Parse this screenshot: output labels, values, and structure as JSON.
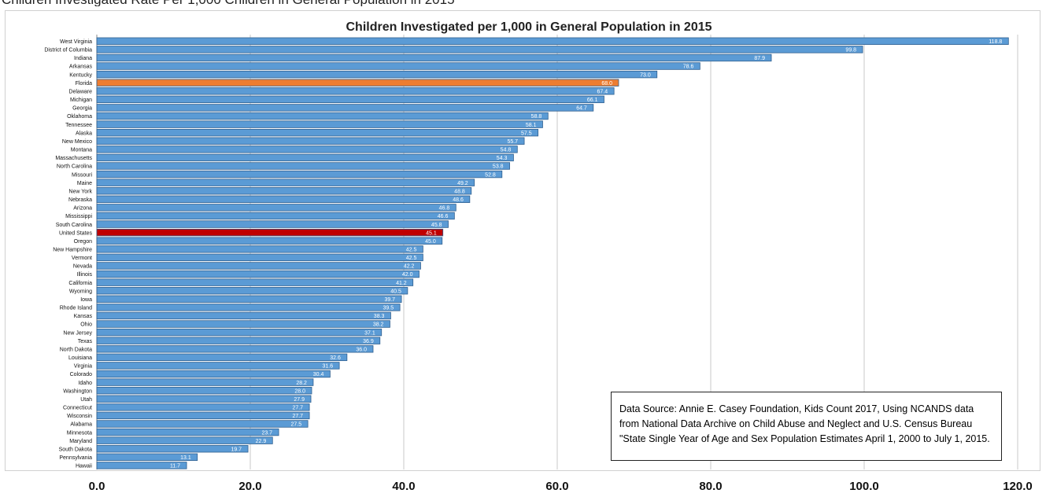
{
  "page_title": "Children Investigated Rate Per 1,000 Children in General Population in 2015",
  "colors": {
    "bar": "#5b9bd5",
    "bar_border": "#2f5f8f",
    "florida": "#ed7d31",
    "united_states": "#c00000",
    "gridline": "#c8c8c8",
    "label_text": "#ffffff"
  },
  "source_note": "Data Source: Annie E. Casey Foundation, Kids Count 2017, Using NCANDS data from National Data Archive on Child Abuse and Neglect and U.S. Census Bureau \"State Single Year of Age and Sex Population Estimates April 1, 2000 to July 1, 2015.",
  "chart_data": {
    "type": "bar",
    "orientation": "horizontal",
    "title": "Children Investigated per 1,000 in General Population in 2015",
    "xlabel": "",
    "ylabel": "",
    "xlim": [
      0,
      120
    ],
    "x_ticks": [
      "0.0",
      "20.0",
      "40.0",
      "60.0",
      "80.0",
      "100.0",
      "120.0"
    ],
    "grid": true,
    "highlights": {
      "Florida": "florida",
      "United States": "united_states"
    },
    "categories": [
      "West Virginia",
      "District of Columbia",
      "Indiana",
      "Arkansas",
      "Kentucky",
      "Florida",
      "Delaware",
      "Michigan",
      "Georgia",
      "Oklahoma",
      "Tennessee",
      "Alaska",
      "New Mexico",
      "Montana",
      "Massachusetts",
      "North Carolina",
      "Missouri",
      "Maine",
      "New York",
      "Nebraska",
      "Arizona",
      "Mississippi",
      "South Carolina",
      "United States",
      "Oregon",
      "New Hampshire",
      "Vermont",
      "Nevada",
      "Illinois",
      "California",
      "Wyoming",
      "Iowa",
      "Rhode Island",
      "Kansas",
      "Ohio",
      "New Jersey",
      "Texas",
      "North Dakota",
      "Louisiana",
      "Virginia",
      "Colorado",
      "Idaho",
      "Washington",
      "Utah",
      "Connecticut",
      "Wisconsin",
      "Alabama",
      "Minnesota",
      "Maryland",
      "South Dakota",
      "Pennsylvania",
      "Hawaii"
    ],
    "values": [
      118.8,
      99.8,
      87.9,
      78.6,
      73.0,
      68.0,
      67.4,
      66.1,
      64.7,
      58.8,
      58.1,
      57.5,
      55.7,
      54.8,
      54.3,
      53.8,
      52.8,
      49.2,
      48.8,
      48.6,
      46.8,
      46.6,
      45.8,
      45.1,
      45.0,
      42.5,
      42.5,
      42.2,
      42.0,
      41.2,
      40.5,
      39.7,
      39.5,
      38.3,
      38.2,
      37.1,
      36.9,
      36.0,
      32.6,
      31.6,
      30.4,
      28.2,
      28.0,
      27.9,
      27.7,
      27.7,
      27.5,
      23.7,
      22.9,
      19.7,
      13.1,
      11.7
    ],
    "value_labels": [
      "118.8",
      "99.8",
      "87.9",
      "78.6",
      "73.0",
      "68.0",
      "67.4",
      "66.1",
      "64.7",
      "58.8",
      "58.1",
      "57.5",
      "55.7",
      "54.8",
      "54.3",
      "53.8",
      "52.8",
      "49.2",
      "48.8",
      "48.6",
      "46.8",
      "46.6",
      "45.8",
      "45.1",
      "45.0",
      "42.5",
      "42.5",
      "42.2",
      "42.0",
      "41.2",
      "40.5",
      "39.7",
      "39.5",
      "38.3",
      "38.2",
      "37.1",
      "36.9",
      "36.0",
      "32.6",
      "31.6",
      "30.4",
      "28.2",
      "28.0",
      "27.9",
      "27.7",
      "27.7",
      "27.5",
      "23.7",
      "22.9",
      "19.7",
      "13.1",
      "11.7"
    ]
  }
}
